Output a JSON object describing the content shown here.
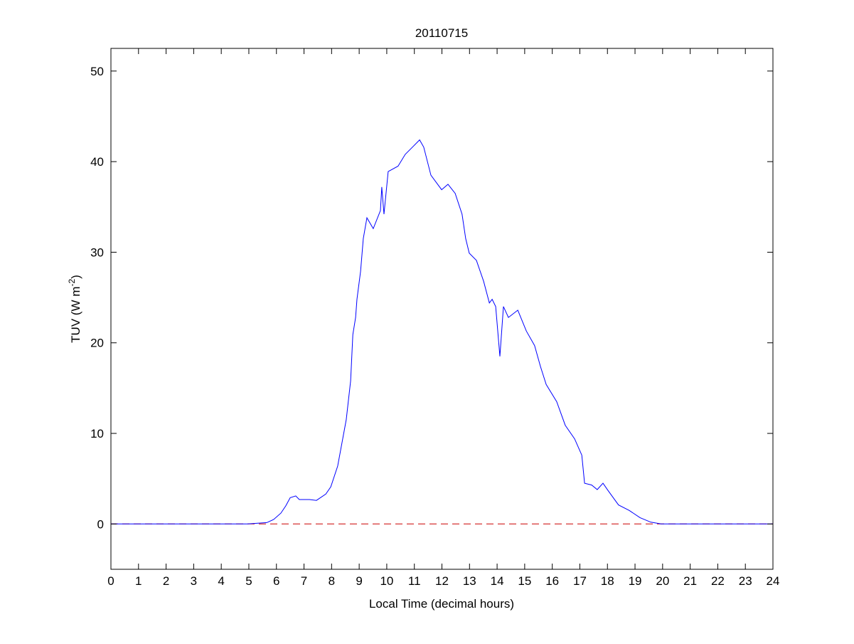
{
  "chart_data": {
    "type": "line",
    "title": "20110715",
    "xlabel": "Local Time (decimal hours)",
    "ylabel_main": "TUV (W m",
    "ylabel_sup": "-2",
    "ylabel_close": ")",
    "xlim": [
      0,
      24
    ],
    "ylim": [
      -5,
      52.5
    ],
    "xticks": [
      0,
      1,
      2,
      3,
      4,
      5,
      6,
      7,
      8,
      9,
      10,
      11,
      12,
      13,
      14,
      15,
      16,
      17,
      18,
      19,
      20,
      21,
      22,
      23,
      24
    ],
    "yticks": [
      0,
      10,
      20,
      30,
      40,
      50
    ],
    "grid": false,
    "series": [
      {
        "color": "#0000ff",
        "style": "solid",
        "x": [
          0,
          4.95,
          5.65,
          5.9,
          6.16,
          6.34,
          6.5,
          6.7,
          6.83,
          7.2,
          7.45,
          7.79,
          7.97,
          8.22,
          8.53,
          8.69,
          8.77,
          8.87,
          8.92,
          9.05,
          9.15,
          9.28,
          9.51,
          9.77,
          9.82,
          9.9,
          10.05,
          10.41,
          10.67,
          10.93,
          11.19,
          11.34,
          11.6,
          11.99,
          12.22,
          12.48,
          12.73,
          12.86,
          12.99,
          13.25,
          13.51,
          13.72,
          13.82,
          13.95,
          14.1,
          14.23,
          14.41,
          14.75,
          15.06,
          15.36,
          15.57,
          15.78,
          16.16,
          16.47,
          16.81,
          17.07,
          17.17,
          17.43,
          17.63,
          17.84,
          18.02,
          18.4,
          18.79,
          19.18,
          19.57,
          19.95,
          24
        ],
        "y": [
          0,
          0,
          0.15,
          0.5,
          1.2,
          2.0,
          2.9,
          3.1,
          2.7,
          2.7,
          2.6,
          3.3,
          4.1,
          6.4,
          11.5,
          15.8,
          20.9,
          22.8,
          24.8,
          27.9,
          31.5,
          33.8,
          32.6,
          34.6,
          37.2,
          34.2,
          38.9,
          39.5,
          40.8,
          41.6,
          42.4,
          41.6,
          38.5,
          36.9,
          37.5,
          36.5,
          34.2,
          31.5,
          29.9,
          29.1,
          26.8,
          24.4,
          24.8,
          24.0,
          18.5,
          24.0,
          22.8,
          23.6,
          21.3,
          19.7,
          17.4,
          15.4,
          13.5,
          10.9,
          9.4,
          7.6,
          4.5,
          4.3,
          3.8,
          4.5,
          3.7,
          2.1,
          1.5,
          0.7,
          0.2,
          0,
          0
        ]
      },
      {
        "color": "#cc0000",
        "style": "dashed",
        "x": [
          0,
          24
        ],
        "y": [
          0,
          0
        ]
      }
    ]
  }
}
